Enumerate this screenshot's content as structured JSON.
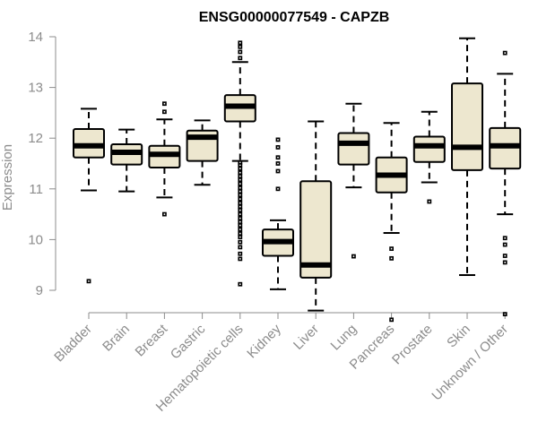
{
  "chart_data": {
    "type": "boxplot",
    "title": "ENSG00000077549 - CAPZB",
    "xlabel": "",
    "ylabel": "Expression",
    "ylim": [
      8.3,
      14.05
    ],
    "yticks": [
      9,
      10,
      11,
      12,
      13,
      14
    ],
    "box_color": "#ede7cf",
    "line_color": "#000000",
    "axis_color": "#8c8c8c",
    "categories": [
      "Bladder",
      "Brain",
      "Breast",
      "Gastric",
      "Hematopoietic cells",
      "Kidney",
      "Liver",
      "Lung",
      "Pancreas",
      "Prostate",
      "Skin",
      "Unknown / Other"
    ],
    "boxes": [
      {
        "name": "Bladder",
        "whisker_low": 10.97,
        "q1": 11.62,
        "median": 11.85,
        "q3": 12.18,
        "whisker_high": 12.58,
        "outliers": [
          9.18
        ]
      },
      {
        "name": "Brain",
        "whisker_low": 10.95,
        "q1": 11.48,
        "median": 11.72,
        "q3": 11.88,
        "whisker_high": 12.17,
        "outliers": []
      },
      {
        "name": "Breast",
        "whisker_low": 10.83,
        "q1": 11.42,
        "median": 11.68,
        "q3": 11.85,
        "whisker_high": 12.37,
        "outliers": [
          10.5,
          12.52,
          12.68
        ]
      },
      {
        "name": "Gastric",
        "whisker_low": 11.08,
        "q1": 11.55,
        "median": 12.02,
        "q3": 12.15,
        "whisker_high": 12.35,
        "outliers": []
      },
      {
        "name": "Hematopoietic cells",
        "whisker_low": 11.55,
        "q1": 12.33,
        "median": 12.63,
        "q3": 12.85,
        "whisker_high": 13.5,
        "outliers": [
          9.12,
          9.62,
          9.72,
          9.85,
          9.95,
          10.05,
          10.12,
          10.2,
          10.28,
          10.35,
          10.42,
          10.5,
          10.58,
          10.65,
          10.72,
          10.8,
          10.88,
          10.95,
          11.02,
          11.1,
          11.18,
          11.25,
          11.32,
          11.4,
          11.47,
          11.52,
          13.58,
          13.7,
          13.8,
          13.88
        ]
      },
      {
        "name": "Kidney",
        "whisker_low": 9.02,
        "q1": 9.68,
        "median": 9.96,
        "q3": 10.2,
        "whisker_high": 10.38,
        "outliers": [
          11.0,
          11.35,
          11.5,
          11.62,
          11.82,
          11.97
        ]
      },
      {
        "name": "Liver",
        "whisker_low": 8.6,
        "q1": 9.25,
        "median": 9.5,
        "q3": 11.15,
        "whisker_high": 12.33,
        "outliers": []
      },
      {
        "name": "Lung",
        "whisker_low": 11.03,
        "q1": 11.48,
        "median": 11.9,
        "q3": 12.1,
        "whisker_high": 12.68,
        "outliers": [
          9.67
        ]
      },
      {
        "name": "Pancreas",
        "whisker_low": 10.13,
        "q1": 10.93,
        "median": 11.27,
        "q3": 11.62,
        "whisker_high": 12.3,
        "outliers": [
          8.42,
          9.63,
          9.82
        ]
      },
      {
        "name": "Prostate",
        "whisker_low": 11.13,
        "q1": 11.53,
        "median": 11.85,
        "q3": 12.03,
        "whisker_high": 12.52,
        "outliers": [
          10.75
        ]
      },
      {
        "name": "Skin",
        "whisker_low": 9.3,
        "q1": 11.37,
        "median": 11.82,
        "q3": 13.08,
        "whisker_high": 13.97,
        "outliers": []
      },
      {
        "name": "Unknown / Other",
        "whisker_low": 10.5,
        "q1": 11.4,
        "median": 11.85,
        "q3": 12.2,
        "whisker_high": 13.27,
        "outliers": [
          8.53,
          9.55,
          9.68,
          9.9,
          10.03,
          13.68
        ]
      }
    ]
  }
}
